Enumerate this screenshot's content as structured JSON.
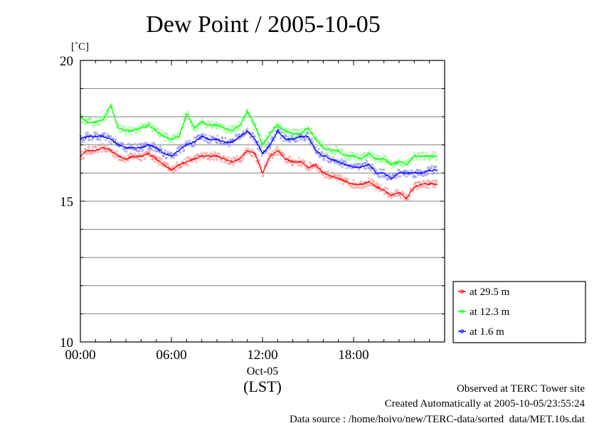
{
  "chart_data": {
    "type": "line",
    "title": "Dew Point / 2005-10-05",
    "ylabel": "[˚C]",
    "xlabel": "(LST)",
    "date_label": "Oct-05",
    "x_unit": "hour (LST)",
    "xlim": [
      0,
      24
    ],
    "ylim": [
      10,
      20
    ],
    "yticks": [
      {
        "value": 10,
        "label": "10"
      },
      {
        "value": 15,
        "label": "15"
      },
      {
        "value": 20,
        "label": "20"
      }
    ],
    "ygrid": [
      11,
      12,
      13,
      14,
      16,
      17,
      18,
      19
    ],
    "xticks": [
      {
        "value": 0,
        "label": "00:00"
      },
      {
        "value": 6,
        "label": "06:00"
      },
      {
        "value": 12,
        "label": "12:00"
      },
      {
        "value": 18,
        "label": "18:00"
      }
    ],
    "grid": true,
    "legend_position": "right-bottom",
    "x": [
      0,
      0.5,
      1,
      1.5,
      2,
      2.5,
      3,
      3.5,
      4,
      4.5,
      5,
      5.5,
      6,
      6.5,
      7,
      7.5,
      8,
      8.5,
      9,
      9.5,
      10,
      10.5,
      11,
      11.5,
      12,
      12.5,
      13,
      13.5,
      14,
      14.5,
      15,
      15.5,
      16,
      16.5,
      17,
      17.5,
      18,
      18.5,
      19,
      19.5,
      20,
      20.5,
      21,
      21.5,
      22,
      22.5,
      23,
      23.5
    ],
    "series": [
      {
        "name": "at 29.5 m",
        "color": "#ff0000",
        "band_color": "#ff9090",
        "values": [
          16.6,
          16.8,
          16.8,
          16.9,
          16.8,
          16.6,
          16.5,
          16.6,
          16.6,
          16.7,
          16.5,
          16.3,
          16.1,
          16.3,
          16.4,
          16.5,
          16.6,
          16.6,
          16.6,
          16.5,
          16.4,
          16.5,
          16.8,
          16.7,
          16.0,
          16.6,
          16.8,
          16.5,
          16.4,
          16.4,
          16.2,
          16.3,
          16.0,
          15.9,
          15.8,
          15.7,
          15.6,
          15.6,
          15.7,
          15.5,
          15.4,
          15.2,
          15.3,
          15.1,
          15.5,
          15.6,
          15.6,
          15.6
        ]
      },
      {
        "name": "at 12.3 m",
        "color": "#00ff00",
        "band_color": "#90ff90",
        "values": [
          18.0,
          17.8,
          17.8,
          17.9,
          18.4,
          17.6,
          17.5,
          17.5,
          17.6,
          17.7,
          17.5,
          17.3,
          17.2,
          17.3,
          18.1,
          17.6,
          17.8,
          17.7,
          17.7,
          17.6,
          17.5,
          17.7,
          18.2,
          17.7,
          17.0,
          17.4,
          17.7,
          17.5,
          17.4,
          17.4,
          17.6,
          17.2,
          16.9,
          16.8,
          16.8,
          16.6,
          16.6,
          16.5,
          16.7,
          16.5,
          16.5,
          16.3,
          16.4,
          16.3,
          16.6,
          16.6,
          16.6,
          16.6
        ]
      },
      {
        "name": "at 1.6 m",
        "color": "#0000ff",
        "band_color": "#8c8cff",
        "values": [
          17.2,
          17.3,
          17.3,
          17.3,
          17.2,
          17.0,
          16.9,
          16.9,
          16.9,
          17.0,
          16.9,
          16.7,
          16.6,
          16.8,
          17.0,
          17.1,
          17.3,
          17.2,
          17.2,
          17.1,
          17.1,
          17.3,
          17.5,
          17.2,
          16.7,
          17.0,
          17.5,
          17.2,
          17.2,
          17.3,
          17.3,
          16.8,
          16.6,
          16.5,
          16.4,
          16.3,
          16.2,
          16.2,
          16.3,
          16.0,
          16.0,
          15.8,
          16.0,
          16.0,
          16.0,
          16.0,
          16.1,
          16.1
        ]
      }
    ]
  },
  "footer": {
    "line1": "Observed at TERC Tower site",
    "line2": "Created Automatically at 2005-10-05/23:55:24",
    "line3": "Data source : /home/hoivo/new/TERC-data/sorted_data/MET.10s.dat"
  }
}
